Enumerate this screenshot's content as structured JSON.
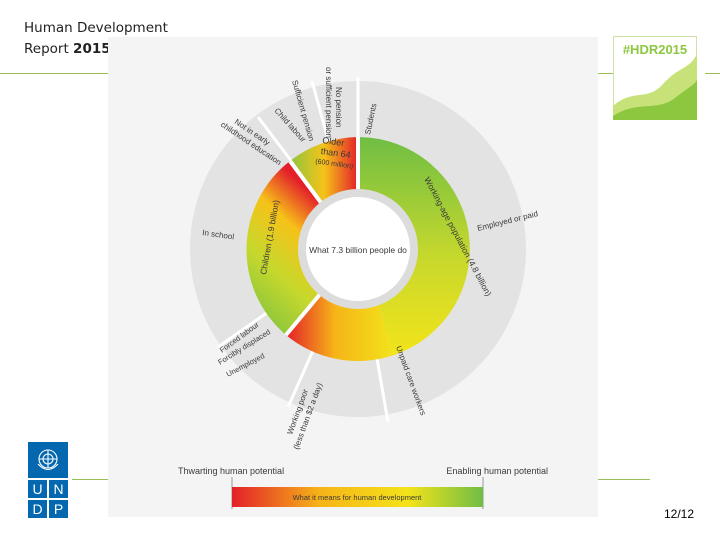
{
  "header": {
    "title_line1": "Human Development",
    "title_line2_pre": "Report ",
    "title_line2_year": "2015"
  },
  "badge": {
    "text": "#HDR2015",
    "accent": "#8dc63f"
  },
  "diagram": {
    "center_label": "What 7.3 billion people do",
    "inner_ring": {
      "working_age": "Working-age population (4.8 billion)",
      "children": "Children (1.9 billion)",
      "older": [
        "Older",
        "than 64",
        "(600 million)"
      ]
    },
    "outer_ring": {
      "no_pension": [
        "No pension",
        "or sufficient pension"
      ],
      "sufficient_pension": "Sufficient pension",
      "students": "Students",
      "employed": "Employed or paid",
      "unpaid_care": "Unpaid care workers",
      "working_poor": [
        "Working poor",
        "(less than $2 a day)"
      ],
      "unemployed": "Unemployed",
      "forcibly_displaced": "Forcibly displaced",
      "forced_labour": "Forced labour",
      "in_school": "In school",
      "not_in_early": [
        "Not in early",
        "childhood education"
      ],
      "child_labour": "Child labour"
    },
    "scale": {
      "left_label": "Thwarting human potential",
      "right_label": "Enabling human potential",
      "bar_label": "What it means for human development",
      "colors": [
        "#e3202a",
        "#f6b418",
        "#f4e31a",
        "#6fbe44"
      ]
    }
  },
  "logo": {
    "letters": [
      "U",
      "N",
      "D",
      "P"
    ],
    "color": "#0468b1"
  },
  "footer": {
    "page": "12/12"
  }
}
